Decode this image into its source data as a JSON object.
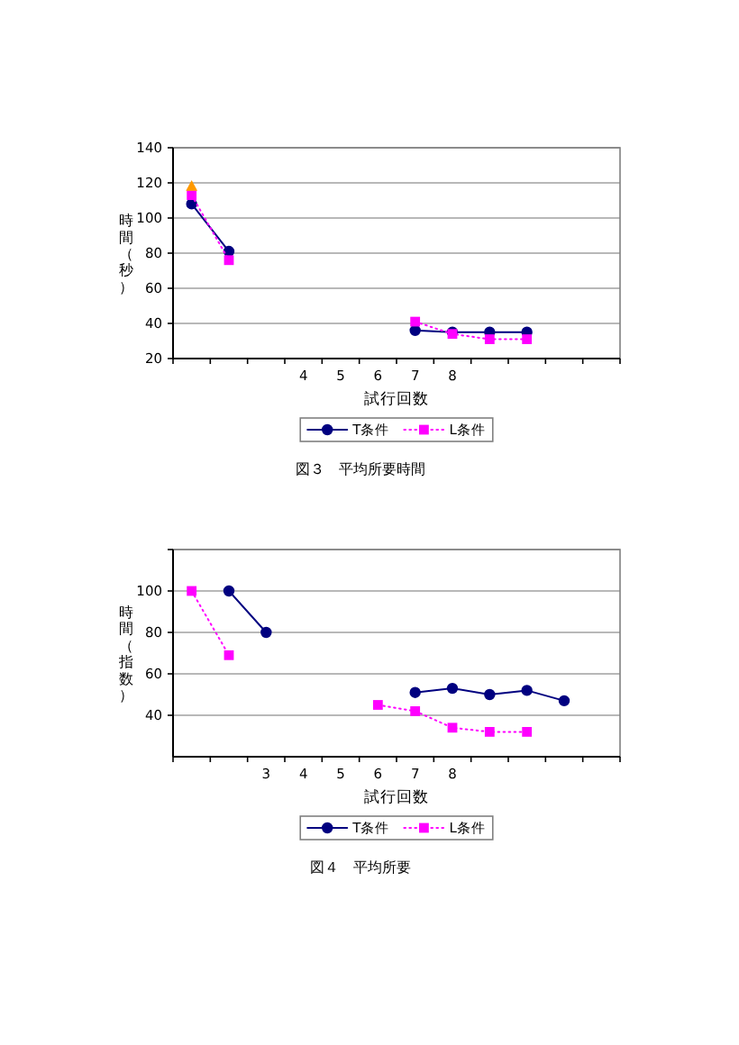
{
  "chart_data": [
    {
      "type": "line",
      "title": "図３　平均所要時間",
      "xlabel": "試行回数",
      "ylabel": "時間（秒）",
      "categories": [
        null,
        null,
        null,
        "4",
        "5",
        "6",
        "7",
        "8",
        null,
        null,
        null,
        null
      ],
      "ylim": [
        20,
        140
      ],
      "yticks": [
        20,
        40,
        60,
        80,
        100,
        120,
        140
      ],
      "grid": "y",
      "legend": "bottom",
      "series": [
        {
          "name": "T条件",
          "color": "#000080",
          "marker": "circle",
          "line_style": "solid",
          "values": [
            108,
            81,
            null,
            null,
            null,
            null,
            36,
            35,
            35,
            35,
            null,
            null
          ]
        },
        {
          "name": "L条件",
          "color": "#ff00ff",
          "marker": "square",
          "line_style": "dotted",
          "values": [
            113,
            76,
            null,
            null,
            null,
            null,
            41,
            34,
            31,
            31,
            null,
            null
          ]
        },
        {
          "color": "#ff9900",
          "marker": "triangle",
          "values": [
            118,
            null,
            null,
            null,
            null,
            null,
            null,
            null,
            null,
            null,
            null,
            null
          ]
        }
      ]
    },
    {
      "type": "line",
      "title": "図４　平均所要",
      "xlabel": "試行回数",
      "ylabel": "時間（指数）",
      "categories": [
        null,
        null,
        "3",
        "4",
        "5",
        "6",
        "7",
        "8",
        null,
        null,
        null,
        null
      ],
      "ylim": [
        20,
        120
      ],
      "yticks": [
        40,
        60,
        80,
        100,
        {
          "value": 120,
          "label": null
        }
      ],
      "grid": "y",
      "legend": "bottom",
      "series": [
        {
          "name": "T条件",
          "color": "#000080",
          "marker": "circle",
          "line_style": "solid",
          "values": [
            null,
            100,
            80,
            null,
            null,
            null,
            51,
            53,
            50,
            52,
            47,
            null
          ]
        },
        {
          "name": "L条件",
          "color": "#ff00ff",
          "marker": "square",
          "line_style": "dotted",
          "values": [
            100,
            69,
            null,
            null,
            null,
            45,
            42,
            34,
            32,
            32,
            null,
            null
          ]
        }
      ]
    }
  ]
}
